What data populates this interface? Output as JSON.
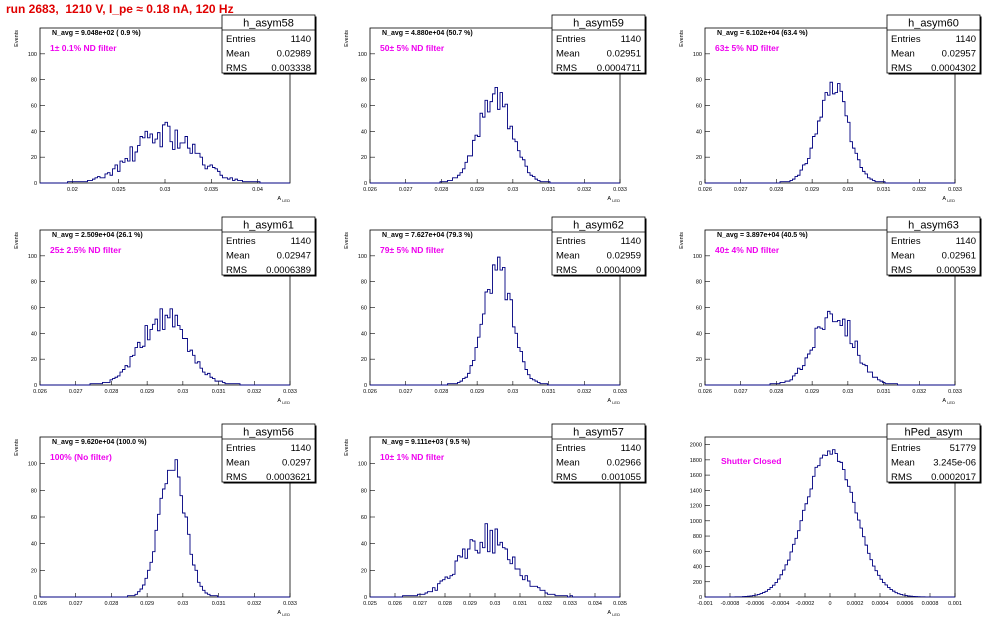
{
  "page": {
    "title": "run 2683,  1210 V, I_pe ≈ 0.18 nA, 120 Hz"
  },
  "stats_labels": {
    "entries": "Entries",
    "mean": "Mean",
    "rms": "RMS"
  },
  "colors": {
    "hist": "#000080",
    "title_text": "#e00000",
    "note_text": "#ee00ee",
    "frame": "#000000"
  },
  "chart_data": [
    {
      "type": "bar",
      "name": "h_asym58",
      "title": "h_asym58",
      "ylabel": "Events",
      "xlabel": "A_LED",
      "avg_text": "N_avg = 9.048e+02 ( 0.9 %)",
      "note": "1± 0.1% ND filter",
      "entries": "1140",
      "mean": "0.02989",
      "rms": "0.003338",
      "xlim": [
        0.0165,
        0.0435
      ],
      "ylim": [
        0,
        120
      ],
      "xticks": [
        0.02,
        0.025,
        0.03,
        0.035,
        0.04
      ],
      "xtick_labels": [
        "0.02",
        "0.025",
        "0.03",
        "0.035",
        "0.04"
      ],
      "yticks": [
        0,
        20,
        40,
        60,
        80,
        100
      ],
      "ytick_labels": [
        "0",
        "20",
        "40",
        "60",
        "80",
        "100"
      ],
      "mean_val": 0.0299,
      "sigma": 0.0033,
      "peak": 38,
      "jitter": 0.3,
      "seed": 58
    },
    {
      "type": "bar",
      "name": "h_asym59",
      "title": "h_asym59",
      "ylabel": "Events",
      "xlabel": "A_LED",
      "avg_text": "N_avg = 4.880e+04 (50.7 %)",
      "note": "50± 5% ND filter",
      "entries": "1140",
      "mean": "0.02951",
      "rms": "0.0004711",
      "xlim": [
        0.026,
        0.033
      ],
      "ylim": [
        0,
        120
      ],
      "xticks": [
        0.026,
        0.027,
        0.028,
        0.029,
        0.03,
        0.031,
        0.032,
        0.033
      ],
      "xtick_labels": [
        "0.026",
        "0.027",
        "0.028",
        "0.029",
        "0.03",
        "0.031",
        "0.032",
        "0.033"
      ],
      "yticks": [
        0,
        20,
        40,
        60,
        80,
        100
      ],
      "ytick_labels": [
        "0",
        "20",
        "40",
        "60",
        "80",
        "100"
      ],
      "mean_val": 0.02951,
      "sigma": 0.00047,
      "peak": 68,
      "jitter": 0.15,
      "seed": 59
    },
    {
      "type": "bar",
      "name": "h_asym60",
      "title": "h_asym60",
      "ylabel": "Events",
      "xlabel": "A_LED",
      "avg_text": "N_avg = 6.102e+04 (63.4 %)",
      "note": "63± 5% ND filter",
      "entries": "1140",
      "mean": "0.02957",
      "rms": "0.0004302",
      "xlim": [
        0.026,
        0.033
      ],
      "ylim": [
        0,
        120
      ],
      "xticks": [
        0.026,
        0.027,
        0.028,
        0.029,
        0.03,
        0.031,
        0.032,
        0.033
      ],
      "xtick_labels": [
        "0.026",
        "0.027",
        "0.028",
        "0.029",
        "0.03",
        "0.031",
        "0.032",
        "0.033"
      ],
      "yticks": [
        0,
        20,
        40,
        60,
        80,
        100
      ],
      "ytick_labels": [
        "0",
        "20",
        "40",
        "60",
        "80",
        "100"
      ],
      "mean_val": 0.02957,
      "sigma": 0.00043,
      "peak": 74,
      "jitter": 0.15,
      "seed": 60
    },
    {
      "type": "bar",
      "name": "h_asym61",
      "title": "h_asym61",
      "ylabel": "Events",
      "xlabel": "A_LED",
      "avg_text": "N_avg = 2.509e+04 (26.1 %)",
      "note": "25± 2.5% ND filter",
      "entries": "1140",
      "mean": "0.02947",
      "rms": "0.0006389",
      "xlim": [
        0.026,
        0.033
      ],
      "ylim": [
        0,
        120
      ],
      "xticks": [
        0.026,
        0.027,
        0.028,
        0.029,
        0.03,
        0.031,
        0.032,
        0.033
      ],
      "xtick_labels": [
        "0.026",
        "0.027",
        "0.028",
        "0.029",
        "0.03",
        "0.031",
        "0.032",
        "0.033"
      ],
      "yticks": [
        0,
        20,
        40,
        60,
        80,
        100
      ],
      "ytick_labels": [
        "0",
        "20",
        "40",
        "60",
        "80",
        "100"
      ],
      "mean_val": 0.02947,
      "sigma": 0.00064,
      "peak": 52,
      "jitter": 0.2,
      "seed": 61
    },
    {
      "type": "bar",
      "name": "h_asym62",
      "title": "h_asym62",
      "ylabel": "Events",
      "xlabel": "A_LED",
      "avg_text": "N_avg = 7.627e+04 (79.3 %)",
      "note": "79± 5% ND filter",
      "entries": "1140",
      "mean": "0.02959",
      "rms": "0.0004009",
      "xlim": [
        0.026,
        0.033
      ],
      "ylim": [
        0,
        120
      ],
      "xticks": [
        0.026,
        0.027,
        0.028,
        0.029,
        0.03,
        0.031,
        0.032,
        0.033
      ],
      "xtick_labels": [
        "0.026",
        "0.027",
        "0.028",
        "0.029",
        "0.03",
        "0.031",
        "0.032",
        "0.033"
      ],
      "yticks": [
        0,
        20,
        40,
        60,
        80,
        100
      ],
      "ytick_labels": [
        "0",
        "20",
        "40",
        "60",
        "80",
        "100"
      ],
      "mean_val": 0.02959,
      "sigma": 0.0004,
      "peak": 90,
      "jitter": 0.15,
      "seed": 62
    },
    {
      "type": "bar",
      "name": "h_asym63",
      "title": "h_asym63",
      "ylabel": "Events",
      "xlabel": "A_LED",
      "avg_text": "N_avg = 3.897e+04 (40.5 %)",
      "note": "40± 4% ND filter",
      "entries": "1140",
      "mean": "0.02961",
      "rms": "0.000539",
      "xlim": [
        0.026,
        0.033
      ],
      "ylim": [
        0,
        120
      ],
      "xticks": [
        0.026,
        0.027,
        0.028,
        0.029,
        0.03,
        0.031,
        0.032,
        0.033
      ],
      "xtick_labels": [
        "0.026",
        "0.027",
        "0.028",
        "0.029",
        "0.03",
        "0.031",
        "0.032",
        "0.033"
      ],
      "yticks": [
        0,
        20,
        40,
        60,
        80,
        100
      ],
      "ytick_labels": [
        "0",
        "20",
        "40",
        "60",
        "80",
        "100"
      ],
      "mean_val": 0.02961,
      "sigma": 0.00054,
      "peak": 58,
      "jitter": 0.2,
      "seed": 63
    },
    {
      "type": "bar",
      "name": "h_asym56",
      "title": "h_asym56",
      "ylabel": "Events",
      "xlabel": "A_LED",
      "avg_text": "N_avg = 9.620e+04 (100.0 %)",
      "note": "100% (No filter)",
      "entries": "1140",
      "mean": "0.0297",
      "rms": "0.0003621",
      "xlim": [
        0.026,
        0.033
      ],
      "ylim": [
        0,
        120
      ],
      "xticks": [
        0.026,
        0.027,
        0.028,
        0.029,
        0.03,
        0.031,
        0.032,
        0.033
      ],
      "xtick_labels": [
        "0.026",
        "0.027",
        "0.028",
        "0.029",
        "0.03",
        "0.031",
        "0.032",
        "0.033"
      ],
      "yticks": [
        0,
        20,
        40,
        60,
        80,
        100
      ],
      "ytick_labels": [
        "0",
        "20",
        "40",
        "60",
        "80",
        "100"
      ],
      "mean_val": 0.0297,
      "sigma": 0.00036,
      "peak": 105,
      "jitter": 0.12,
      "seed": 56
    },
    {
      "type": "bar",
      "name": "h_asym57",
      "title": "h_asym57",
      "ylabel": "Events",
      "xlabel": "A_LED",
      "avg_text": "N_avg = 9.111e+03 ( 9.5 %)",
      "note": "10± 1% ND filter",
      "entries": "1140",
      "mean": "0.02966",
      "rms": "0.001055",
      "xlim": [
        0.025,
        0.035
      ],
      "ylim": [
        0,
        120
      ],
      "xticks": [
        0.025,
        0.026,
        0.027,
        0.028,
        0.029,
        0.03,
        0.031,
        0.032,
        0.033,
        0.034,
        0.035
      ],
      "xtick_labels": [
        "0.025",
        "0.026",
        "0.027",
        "0.028",
        "0.029",
        "0.03",
        "0.031",
        "0.032",
        "0.033",
        "0.034",
        "0.035"
      ],
      "yticks": [
        0,
        20,
        40,
        60,
        80,
        100
      ],
      "ytick_labels": [
        "0",
        "20",
        "40",
        "60",
        "80",
        "100"
      ],
      "mean_val": 0.02966,
      "sigma": 0.00105,
      "peak": 44,
      "jitter": 0.25,
      "seed": 57
    },
    {
      "type": "bar",
      "name": "hPed_asym",
      "title": "hPed_asym",
      "ylabel": "",
      "xlabel": "",
      "avg_text": "",
      "note": "Shutter Closed",
      "entries": "51779",
      "mean": "3.245e-06",
      "rms": "0.0002017",
      "xlim": [
        -0.001,
        0.001
      ],
      "ylim": [
        0,
        2100
      ],
      "xticks": [
        -0.001,
        -0.0008,
        -0.0006,
        -0.0004,
        -0.0002,
        0,
        0.0002,
        0.0004,
        0.0006,
        0.0008,
        0.001
      ],
      "xtick_labels": [
        "-0.001",
        "-0.0008",
        "-0.0006",
        "-0.0004",
        "-0.0002",
        "0",
        "0.0002",
        "0.0004",
        "0.0006",
        "0.0008",
        "0.001"
      ],
      "yticks": [
        0,
        200,
        400,
        600,
        800,
        1000,
        1200,
        1400,
        1600,
        1800,
        2000
      ],
      "ytick_labels": [
        "0",
        "200",
        "400",
        "600",
        "800",
        "1000",
        "1200",
        "1400",
        "1600",
        "1800",
        "2000"
      ],
      "mean_val": 0.0,
      "sigma": 0.0002,
      "peak": 1930,
      "jitter": 0.03,
      "seed": 99
    }
  ]
}
